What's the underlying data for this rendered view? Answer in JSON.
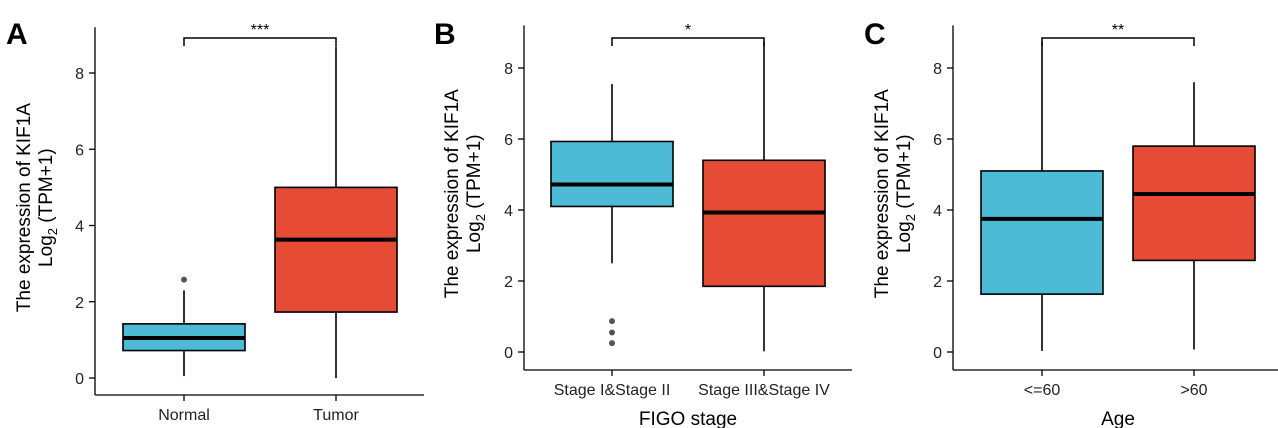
{
  "chart_data": [
    {
      "panel_label": "A",
      "type": "box",
      "ylabel_line1": "The expression of KIF1A",
      "ylabel_line2": "Log",
      "ylabel_sub": "2",
      "ylabel_tail": " (TPM+1)",
      "xlabel": "",
      "ylim": [
        0,
        9.2
      ],
      "yticks": [
        0,
        2,
        4,
        6,
        8
      ],
      "categories": [
        "Normal",
        "Tumor"
      ],
      "boxes": [
        {
          "name": "Normal",
          "color": "#4DBBD5",
          "whisker_low": 0.05,
          "q1": 0.72,
          "median": 1.05,
          "q3": 1.42,
          "whisker_high": 2.3,
          "outliers": [
            2.58
          ]
        },
        {
          "name": "Tumor",
          "color": "#E64B35",
          "whisker_low": 0.0,
          "q1": 1.73,
          "median": 3.63,
          "q3": 5.0,
          "whisker_high": 8.7,
          "outliers": []
        }
      ],
      "significance": "***"
    },
    {
      "panel_label": "B",
      "type": "box",
      "ylabel_line1": "The expression of KIF1A",
      "ylabel_line2": "Log",
      "ylabel_sub": "2",
      "ylabel_tail": " (TPM+1)",
      "xlabel": "FIGO stage",
      "ylim": [
        0,
        9.2
      ],
      "yticks": [
        0,
        2,
        4,
        6,
        8
      ],
      "categories": [
        "Stage I&Stage II",
        "Stage III&Stage IV"
      ],
      "boxes": [
        {
          "name": "Stage I&Stage II",
          "color": "#4DBBD5",
          "whisker_low": 2.5,
          "q1": 4.1,
          "median": 4.72,
          "q3": 5.93,
          "whisker_high": 7.55,
          "outliers": [
            0.25,
            0.55,
            0.87
          ]
        },
        {
          "name": "Stage III&Stage IV",
          "color": "#E64B35",
          "whisker_low": 0.02,
          "q1": 1.85,
          "median": 3.93,
          "q3": 5.4,
          "whisker_high": 8.75,
          "outliers": []
        }
      ],
      "significance": "*"
    },
    {
      "panel_label": "C",
      "type": "box",
      "ylabel_line1": "The expression of KIF1A",
      "ylabel_line2": "Log",
      "ylabel_sub": "2",
      "ylabel_tail": " (TPM+1)",
      "xlabel": "Age",
      "ylim": [
        0,
        9.2
      ],
      "yticks": [
        0,
        2,
        4,
        6,
        8
      ],
      "categories": [
        "<=60",
        ">60"
      ],
      "boxes": [
        {
          "name": "<=60",
          "color": "#4DBBD5",
          "whisker_low": 0.03,
          "q1": 1.63,
          "median": 3.75,
          "q3": 5.1,
          "whisker_high": 8.75,
          "outliers": []
        },
        {
          "name": ">60",
          "color": "#E64B35",
          "whisker_low": 0.07,
          "q1": 2.58,
          "median": 4.45,
          "q3": 5.8,
          "whisker_high": 7.6,
          "outliers": []
        }
      ],
      "significance": "**"
    }
  ]
}
